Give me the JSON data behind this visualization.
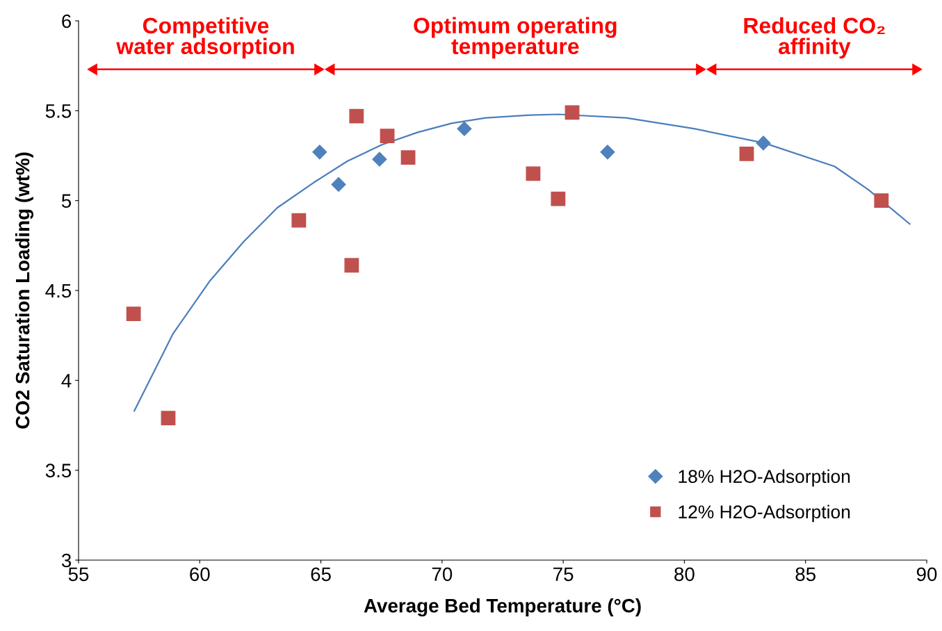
{
  "chart_data": {
    "type": "scatter",
    "xlabel": "Average Bed Temperature (°C)",
    "ylabel": "CO2 Saturation Loading (wt%)",
    "series": [
      {
        "name": "18% H2O-Adsorption",
        "color": "#4f81bd",
        "marker": "diamond",
        "x": [
          64.95,
          65.73,
          67.42,
          70.92,
          76.83,
          83.26
        ],
        "values": [
          5.27,
          5.09,
          5.23,
          5.4,
          5.27,
          5.32
        ]
      },
      {
        "name": "12% H2O-Adsorption",
        "color": "#c0504d",
        "marker": "square",
        "x": [
          57.27,
          58.7,
          64.09,
          66.27,
          66.47,
          67.74,
          68.6,
          73.76,
          74.79,
          75.37,
          82.57,
          88.13
        ],
        "values": [
          4.37,
          3.79,
          4.89,
          4.64,
          5.47,
          5.36,
          5.24,
          5.15,
          5.01,
          5.49,
          5.26,
          5.0
        ]
      },
      {
        "type": "line",
        "color": "#4a7ebb",
        "marker": "none",
        "x": [
          57.3,
          58.9,
          60.4,
          61.8,
          63.2,
          64.7,
          66.1,
          67.5,
          69.0,
          70.4,
          71.8,
          73.5,
          74.8,
          77.6,
          80.4,
          83.3,
          86.2,
          87.6,
          89.3
        ],
        "values": [
          3.83,
          4.26,
          4.55,
          4.77,
          4.96,
          5.1,
          5.22,
          5.31,
          5.38,
          5.43,
          5.46,
          5.475,
          5.48,
          5.46,
          5.4,
          5.32,
          5.19,
          5.06,
          4.87
        ]
      }
    ],
    "xlim": [
      55,
      90
    ],
    "xticks": [
      55,
      60,
      65,
      70,
      75,
      80,
      85,
      90
    ],
    "ylim": [
      3,
      6
    ],
    "yticks": [
      3,
      3.5,
      4,
      4.5,
      5,
      5.5,
      6
    ],
    "grid": false,
    "legend": "bottom right",
    "annotations": [
      "Competitive\nwater adsorption",
      "Optimum operating\ntemperature",
      "Reduced CO₂\naffinity"
    ]
  }
}
